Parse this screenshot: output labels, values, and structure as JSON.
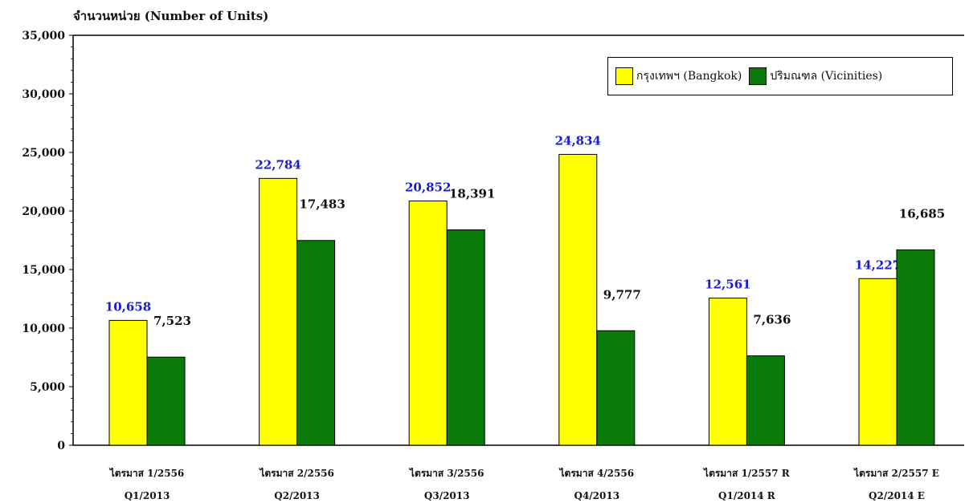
{
  "chart_data": {
    "type": "bar",
    "ylabel": "จำนวนหน่วย (Number of Units)",
    "ylim": [
      0,
      35000
    ],
    "yticks": [
      "0",
      "5,000",
      "10,000",
      "15,000",
      "20,000",
      "25,000",
      "30,000",
      "35,000"
    ],
    "ytick_values": [
      0,
      5000,
      10000,
      15000,
      20000,
      25000,
      30000,
      35000
    ],
    "categories_thai": [
      "ไตรมาส 1/2556",
      "ไตรมาส 2/2556",
      "ไตรมาส 3/2556",
      "ไตรมาส 4/2556",
      "ไตรมาส 1/2557 R",
      "ไตรมาส 2/2557 E"
    ],
    "categories": [
      "Q1/2013",
      "Q2/2013",
      "Q3/2013",
      "Q4/2013",
      "Q1/2014 R",
      "Q2/2014 E"
    ],
    "series": [
      {
        "name": "กรุงเทพฯ (Bangkok)",
        "color": "#ffff00",
        "label_color": "#1a1adb",
        "values": [
          10658,
          22784,
          20852,
          24834,
          12561,
          14227
        ],
        "labels": [
          "10,658",
          "22,784",
          "20,852",
          "24,834",
          "12,561",
          "14,227"
        ]
      },
      {
        "name": "ปริมณฑล (Vicinities)",
        "color": "#0a7a0a",
        "label_color": "#111111",
        "values": [
          7523,
          17483,
          18391,
          9777,
          7636,
          16685
        ],
        "labels": [
          "7,523",
          "17,483",
          "18,391",
          "9,777",
          "7,636",
          "16,685"
        ]
      }
    ],
    "legend": {
      "position": "top-right"
    },
    "grid": false
  }
}
